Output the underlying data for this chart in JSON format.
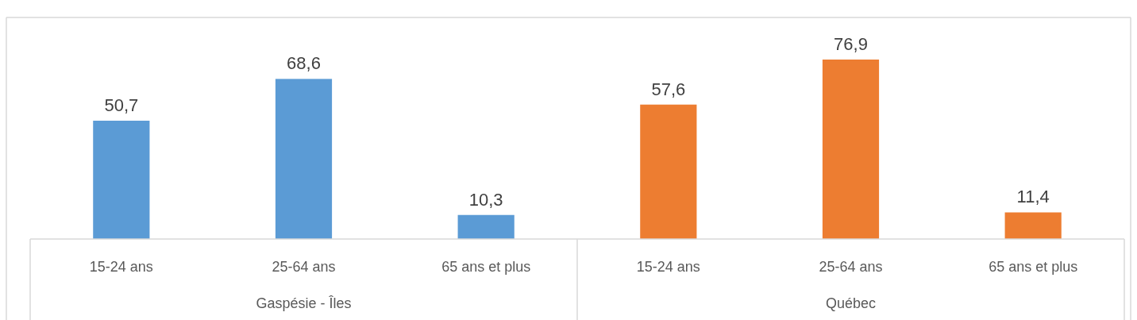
{
  "chart_data": {
    "type": "bar",
    "categories": [
      "15-24 ans",
      "25-64 ans",
      "65 ans et plus",
      "15-24 ans",
      "25-64 ans",
      "65 ans et plus"
    ],
    "values": [
      50.7,
      68.6,
      10.3,
      57.6,
      76.9,
      11.4
    ],
    "colors": [
      "#5b9bd5",
      "#5b9bd5",
      "#5b9bd5",
      "#ed7d31",
      "#ed7d31",
      "#ed7d31"
    ],
    "value_labels": [
      "50,7",
      "68,6",
      "10,3",
      "57,6",
      "76,9",
      "11,4"
    ],
    "annotations": [
      "Gaspésie - Îles",
      "Québec"
    ]
  }
}
